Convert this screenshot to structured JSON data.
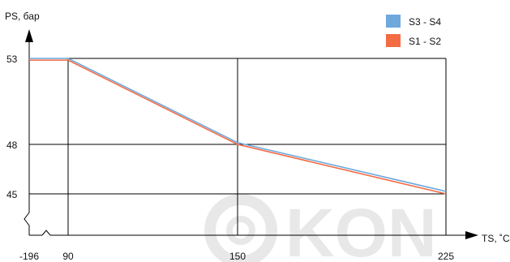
{
  "chart_data": {
    "type": "line",
    "title": "",
    "xlabel": "TS, ˚C",
    "ylabel": "PS, бар",
    "x_ticks": [
      "-196",
      "90",
      "150",
      "225"
    ],
    "y_ticks": [
      "53",
      "48",
      "45"
    ],
    "axis_break_x": true,
    "axis_break_y": true,
    "grid": true,
    "legend_position": "top-right",
    "series": [
      {
        "name": "S3 - S4",
        "color": "#6fa8dc",
        "x": [
          -196,
          90,
          150,
          225
        ],
        "y": [
          53.0,
          53.0,
          48.1,
          45.15
        ]
      },
      {
        "name": "S1 - S2",
        "color": "#f26b43",
        "x": [
          -196,
          90,
          150,
          225
        ],
        "y": [
          52.9,
          52.9,
          48.0,
          45.0
        ]
      }
    ]
  },
  "watermark": {
    "text": "KON"
  }
}
